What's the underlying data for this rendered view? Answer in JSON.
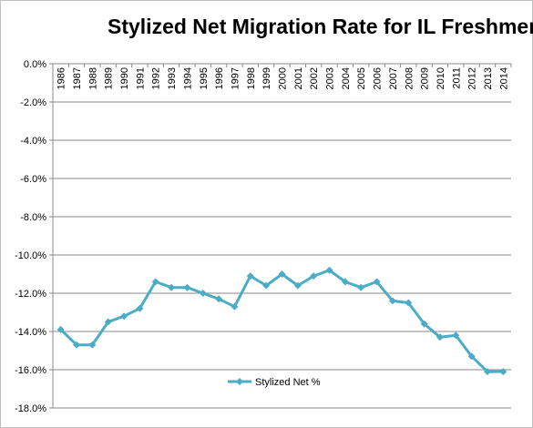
{
  "chart_data": {
    "type": "line",
    "title": "Stylized Net Migration Rate for IL Freshmen",
    "xlabel": "",
    "ylabel": "",
    "ylim": [
      -18.0,
      0.0
    ],
    "y_ticks": [
      "0.0%",
      "-2.0%",
      "-4.0%",
      "-6.0%",
      "-8.0%",
      "-10.0%",
      "-12.0%",
      "-14.0%",
      "-16.0%",
      "-18.0%"
    ],
    "y_tick_values": [
      0,
      -2,
      -4,
      -6,
      -8,
      -10,
      -12,
      -14,
      -16,
      -18
    ],
    "grid": true,
    "legend_position": "bottom-center",
    "categories": [
      "1986",
      "1987",
      "1988",
      "1989",
      "1990",
      "1991",
      "1992",
      "1993",
      "1994",
      "1995",
      "1996",
      "1997",
      "1998",
      "1999",
      "2000",
      "2001",
      "2002",
      "2003",
      "2004",
      "2005",
      "2006",
      "2007",
      "2008",
      "2009",
      "2010",
      "2011",
      "2012",
      "2013",
      "2014"
    ],
    "series": [
      {
        "name": "Stylized Net %",
        "color": "#4bacc6",
        "values": [
          -13.9,
          -14.7,
          -14.7,
          -13.5,
          -13.2,
          -12.8,
          -11.4,
          -11.7,
          -11.7,
          -12.0,
          -12.3,
          -12.7,
          -11.1,
          -11.6,
          -11.0,
          -11.6,
          -11.1,
          -10.8,
          -11.4,
          -11.7,
          -11.4,
          -12.4,
          -12.5,
          -13.6,
          -14.3,
          -14.2,
          -15.3,
          -16.1,
          -16.1
        ]
      }
    ]
  }
}
